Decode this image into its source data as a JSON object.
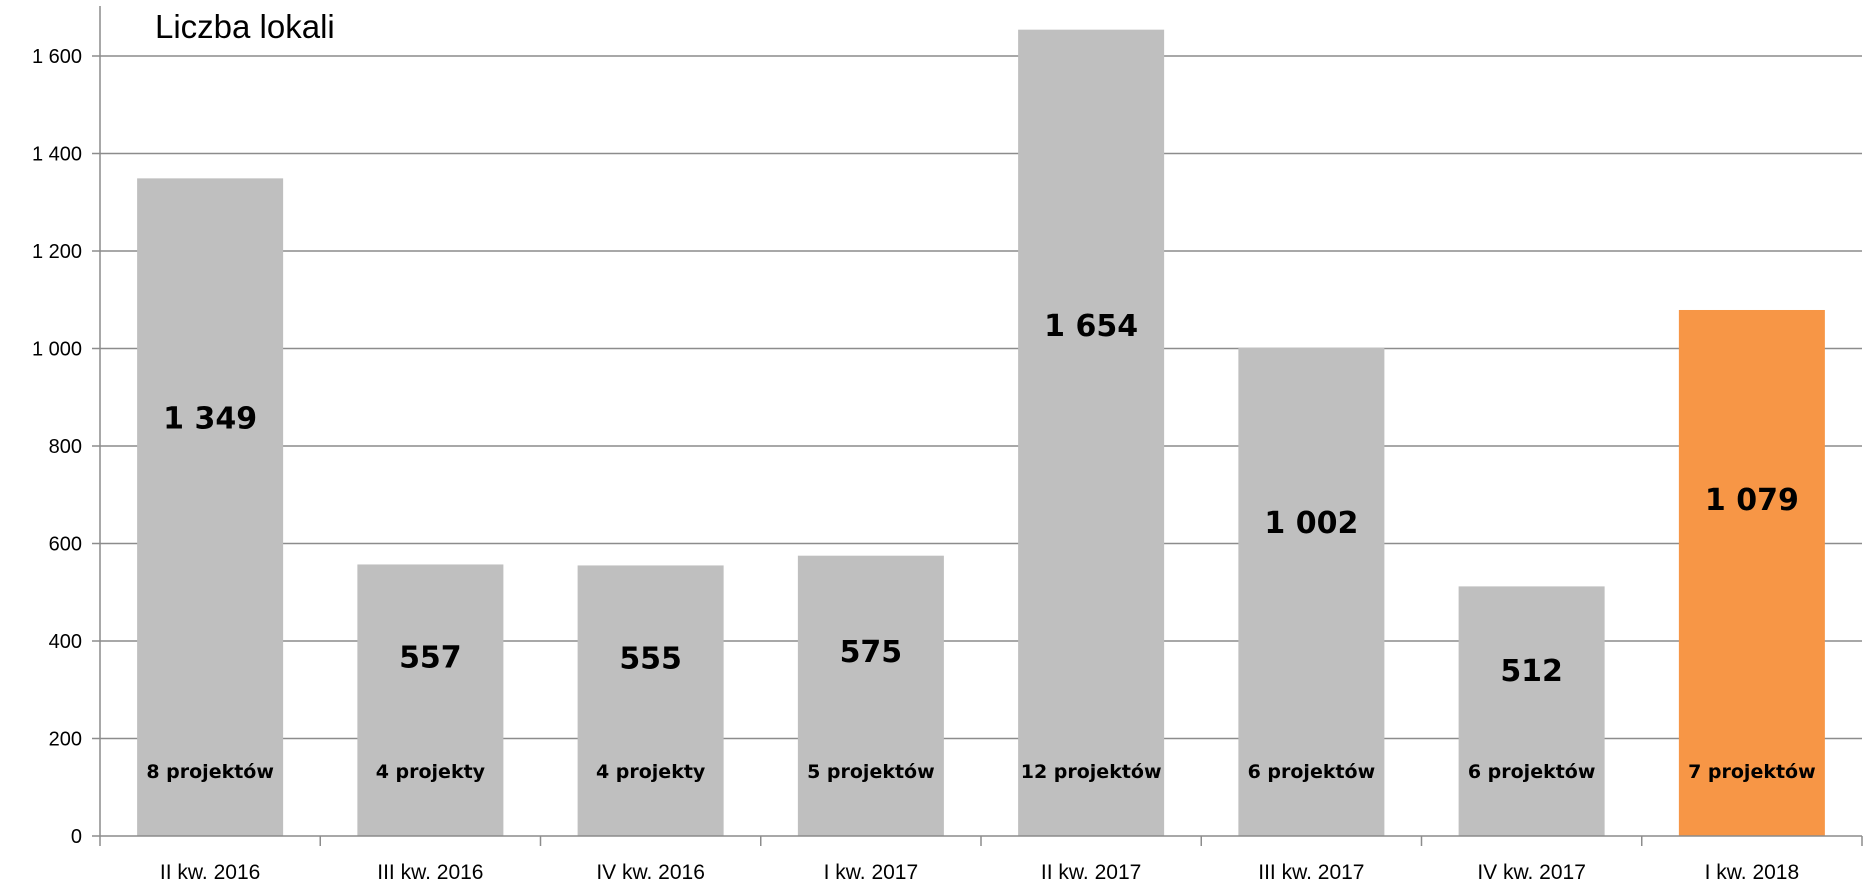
{
  "chart_data": {
    "type": "bar",
    "title": "Liczba lokali",
    "categories": [
      "II kw. 2016",
      "III kw. 2016",
      "IV kw. 2016",
      "I kw. 2017",
      "II kw. 2017",
      "III kw. 2017",
      "IV kw. 2017",
      "I kw. 2018"
    ],
    "values": [
      1349,
      557,
      555,
      575,
      1654,
      1002,
      512,
      1079
    ],
    "value_labels": [
      "1 349",
      "557",
      "555",
      "575",
      "1 654",
      "1 002",
      "512",
      "1 079"
    ],
    "project_labels": [
      "8 projektów",
      "4 projekty",
      "4 projekty",
      "5 projektów",
      "12  projektów",
      "6 projektów",
      "6 projektów",
      "7 projektów"
    ],
    "yticks": [
      0,
      200,
      400,
      600,
      800,
      1000,
      1200,
      1400,
      1600
    ],
    "ytick_labels": [
      "0",
      "200",
      "400",
      "600",
      "800",
      "1 000",
      "1 200",
      "1 400",
      "1 600"
    ],
    "ylim": [
      0,
      1700
    ],
    "grid": true,
    "legend": "none",
    "colors": {
      "bar": "#bfbfbf",
      "highlight_bar": "#f79646",
      "gridline": "#8c8c8c",
      "axis": "#8c8c8c"
    },
    "highlight_index": 7
  }
}
